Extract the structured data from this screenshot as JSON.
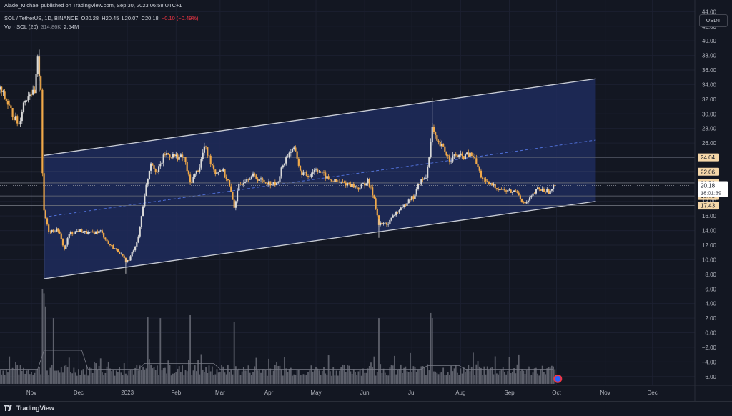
{
  "header": {
    "published": "Alade_Michael published on TradingView.com, Sep 30, 2023 06:58 UTC+1",
    "symbol": "SOL / TetherUS, 1D, BINANCE",
    "o_label": "O",
    "o_value": "20.28",
    "h_label": "H",
    "h_value": "20.45",
    "l_label": "L",
    "l_value": "20.07",
    "c_label": "C",
    "c_value": "20.18",
    "change": "−0.10 (−0.49%)",
    "vol_label": "Vol · SOL (20)",
    "vol_ma": "314.86K",
    "vol_value": "2.54M"
  },
  "currency_button": "USDT",
  "footer": {
    "brand": "TradingView"
  },
  "colors": {
    "background": "#131722",
    "channel_fill": "#1e2c5c",
    "channel_line": "#c9cdd6",
    "midline": "#4f6fd6",
    "candle_up": "#d9d9d9",
    "candle_down": "#f0a94a",
    "volume": "#5d606b",
    "hline": "#6b6f7a"
  },
  "chart_data": {
    "type": "candlestick",
    "price_axis": {
      "ticks": [
        "44.00",
        "42.00",
        "40.00",
        "38.00",
        "36.00",
        "34.00",
        "32.00",
        "30.00",
        "28.00",
        "26.00",
        "24.00",
        "22.00",
        "20.00",
        "18.00",
        "16.00",
        "14.00",
        "12.00",
        "10.00",
        "8.00",
        "6.00",
        "4.00",
        "2.00",
        "0.00",
        "−2.00",
        "−4.00",
        "−6.00"
      ],
      "range": [
        -7.2,
        45.6
      ]
    },
    "time_axis": {
      "labels": [
        "Nov",
        "Dec",
        "2023",
        "Feb",
        "Mar",
        "Apr",
        "May",
        "Jun",
        "Jul",
        "Aug",
        "Sep",
        "Oct",
        "Nov",
        "Dec"
      ],
      "range": [
        "2022-10-12",
        "2023-12-28"
      ]
    },
    "price_levels": [
      {
        "label": "24.04",
        "value": 24.04
      },
      {
        "label": "22.06",
        "value": 22.06
      },
      {
        "label": "20.53",
        "value": 20.53
      },
      {
        "label": "18.75",
        "value": 18.75
      },
      {
        "label": "17.43",
        "value": 17.43
      }
    ],
    "last_price": {
      "label": "20.18",
      "value": 20.18,
      "countdown": "18:01:39"
    },
    "channel": {
      "start_date": "2022-11-09",
      "end_date": "2023-10-26",
      "upper": [
        24.3,
        34.8
      ],
      "lower": [
        7.4,
        18.0
      ]
    },
    "price_path": [
      [
        "2022-10-12",
        33.3
      ],
      [
        "2022-10-16",
        31.8
      ],
      [
        "2022-10-20",
        30.0
      ],
      [
        "2022-10-24",
        28.5
      ],
      [
        "2022-10-27",
        31.5
      ],
      [
        "2022-10-31",
        33.0
      ],
      [
        "2022-11-03",
        32.6
      ],
      [
        "2022-11-05",
        37.3
      ],
      [
        "2022-11-07",
        33.6
      ],
      [
        "2022-11-08",
        22.0
      ],
      [
        "2022-11-09",
        16.5
      ],
      [
        "2022-11-12",
        14.0
      ],
      [
        "2022-11-18",
        14.1
      ],
      [
        "2022-11-22",
        11.4
      ],
      [
        "2022-11-25",
        13.5
      ],
      [
        "2022-12-01",
        14.0
      ],
      [
        "2022-12-08",
        13.6
      ],
      [
        "2022-12-15",
        13.9
      ],
      [
        "2022-12-20",
        12.2
      ],
      [
        "2022-12-27",
        11.0
      ],
      [
        "2022-12-31",
        9.8
      ],
      [
        "2023-01-02",
        9.9
      ],
      [
        "2023-01-08",
        13.0
      ],
      [
        "2023-01-12",
        19.0
      ],
      [
        "2023-01-16",
        23.5
      ],
      [
        "2023-01-20",
        22.0
      ],
      [
        "2023-01-25",
        24.5
      ],
      [
        "2023-01-29",
        24.3
      ],
      [
        "2023-02-02",
        24.1
      ],
      [
        "2023-02-06",
        24.0
      ],
      [
        "2023-02-10",
        20.5
      ],
      [
        "2023-02-16",
        22.8
      ],
      [
        "2023-02-19",
        25.5
      ],
      [
        "2023-02-22",
        24.0
      ],
      [
        "2023-02-26",
        22.0
      ],
      [
        "2023-03-02",
        22.4
      ],
      [
        "2023-03-06",
        20.8
      ],
      [
        "2023-03-10",
        17.3
      ],
      [
        "2023-03-13",
        20.1
      ],
      [
        "2023-03-18",
        21.3
      ],
      [
        "2023-03-22",
        21.5
      ],
      [
        "2023-03-28",
        20.8
      ],
      [
        "2023-04-02",
        20.5
      ],
      [
        "2023-04-06",
        20.3
      ],
      [
        "2023-04-10",
        23.0
      ],
      [
        "2023-04-14",
        24.8
      ],
      [
        "2023-04-18",
        25.0
      ],
      [
        "2023-04-21",
        22.0
      ],
      [
        "2023-04-26",
        21.5
      ],
      [
        "2023-05-01",
        22.5
      ],
      [
        "2023-05-05",
        21.8
      ],
      [
        "2023-05-09",
        21.0
      ],
      [
        "2023-05-15",
        20.6
      ],
      [
        "2023-05-22",
        20.4
      ],
      [
        "2023-05-28",
        19.8
      ],
      [
        "2023-06-01",
        20.5
      ],
      [
        "2023-06-03",
        20.7
      ],
      [
        "2023-06-07",
        18.5
      ],
      [
        "2023-06-10",
        14.8
      ],
      [
        "2023-06-12",
        14.9
      ],
      [
        "2023-06-16",
        15.0
      ],
      [
        "2023-06-21",
        16.5
      ],
      [
        "2023-06-25",
        17.0
      ],
      [
        "2023-06-29",
        18.4
      ],
      [
        "2023-07-02",
        18.5
      ],
      [
        "2023-07-06",
        20.6
      ],
      [
        "2023-07-10",
        21.3
      ],
      [
        "2023-07-13",
        26.0
      ],
      [
        "2023-07-14",
        28.0
      ],
      [
        "2023-07-17",
        26.0
      ],
      [
        "2023-07-21",
        25.3
      ],
      [
        "2023-07-25",
        23.8
      ],
      [
        "2023-07-29",
        24.3
      ],
      [
        "2023-08-02",
        24.1
      ],
      [
        "2023-08-06",
        24.4
      ],
      [
        "2023-08-09",
        24.2
      ],
      [
        "2023-08-14",
        21.5
      ],
      [
        "2023-08-17",
        20.5
      ],
      [
        "2023-08-21",
        20.2
      ],
      [
        "2023-08-25",
        19.8
      ],
      [
        "2023-08-29",
        19.5
      ],
      [
        "2023-09-02",
        19.3
      ],
      [
        "2023-09-06",
        19.4
      ],
      [
        "2023-09-10",
        17.7
      ],
      [
        "2023-09-12",
        17.8
      ],
      [
        "2023-09-15",
        18.6
      ],
      [
        "2023-09-19",
        19.7
      ],
      [
        "2023-09-23",
        19.5
      ],
      [
        "2023-09-27",
        19.3
      ],
      [
        "2023-09-30",
        20.18
      ]
    ],
    "volume_spikes": [
      [
        "2022-11-08",
        6.0
      ],
      [
        "2022-11-09",
        5.4
      ],
      [
        "2022-11-10",
        3.6
      ],
      [
        "2022-11-15",
        2.0
      ],
      [
        "2023-01-14",
        2.1
      ],
      [
        "2023-01-22",
        2.0
      ],
      [
        "2023-02-10",
        2.5
      ],
      [
        "2023-03-10",
        1.5
      ],
      [
        "2023-06-10",
        2.0
      ],
      [
        "2023-07-13",
        2.7
      ],
      [
        "2023-07-14",
        2.0
      ]
    ]
  }
}
